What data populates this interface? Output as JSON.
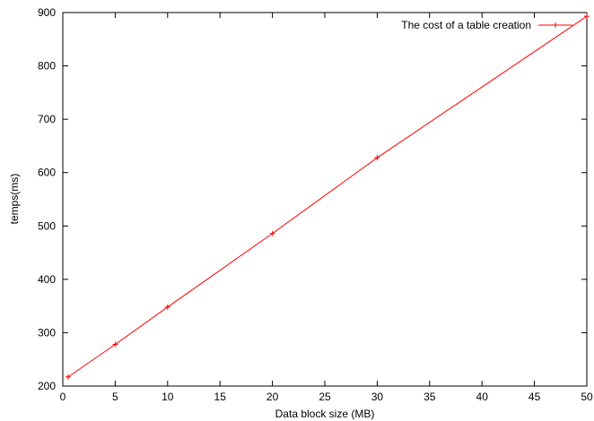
{
  "chart_data": {
    "type": "line",
    "xlabel": "Data block size (MB)",
    "ylabel": "temps(ms)",
    "xlim": [
      0,
      50
    ],
    "ylim": [
      200,
      900
    ],
    "xticks": [
      0,
      5,
      10,
      15,
      20,
      25,
      30,
      35,
      40,
      45,
      50
    ],
    "yticks": [
      200,
      300,
      400,
      500,
      600,
      700,
      800,
      900
    ],
    "grid": false,
    "legend_position": "top-right",
    "series": [
      {
        "name": "The cost of a table creation",
        "color": "#ff0000",
        "marker": "plus",
        "x": [
          0.5,
          5,
          10,
          20,
          30,
          50
        ],
        "y": [
          217,
          278,
          348,
          486,
          628,
          893
        ]
      }
    ]
  }
}
